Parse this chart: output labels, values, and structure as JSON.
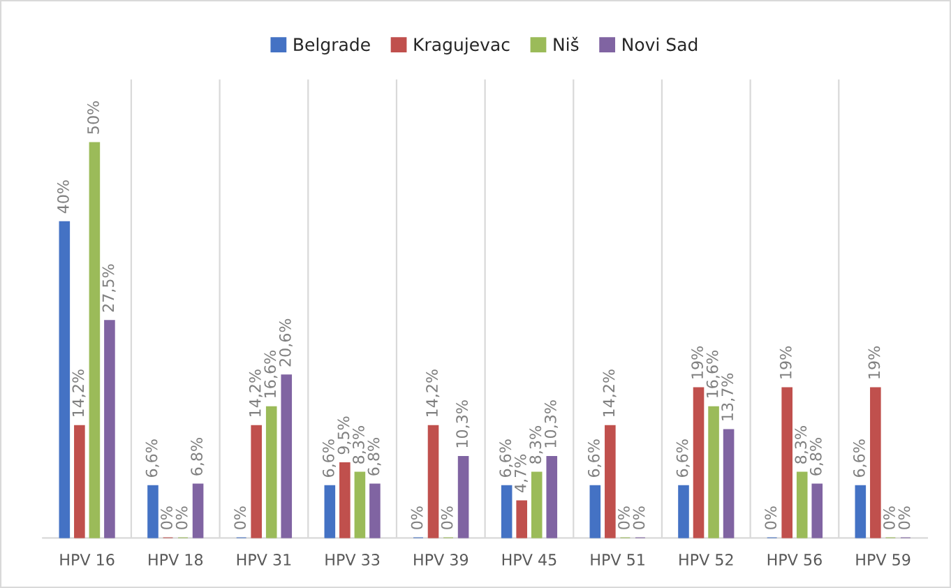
{
  "chart_data": {
    "type": "bar",
    "categories": [
      "HPV 16",
      "HPV 18",
      "HPV 31",
      "HPV 33",
      "HPV 39",
      "HPV 45",
      "HPV 51",
      "HPV 52",
      "HPV 56",
      "HPV 59"
    ],
    "series": [
      {
        "name": "Belgrade",
        "color": "#4472c4",
        "values": [
          40,
          6.6,
          0,
          6.6,
          0,
          6.6,
          6.6,
          6.6,
          0,
          6.6
        ],
        "value_labels": [
          "40%",
          "6,6%",
          "0%",
          "6,6%",
          "0%",
          "6,6%",
          "6,6%",
          "6,6%",
          "0%",
          "6,6%"
        ]
      },
      {
        "name": "Kragujevac",
        "color": "#c0504d",
        "values": [
          14.2,
          0,
          14.2,
          9.5,
          14.2,
          4.7,
          14.2,
          19,
          19,
          19
        ],
        "value_labels": [
          "14,2%",
          "0%",
          "14,2%",
          "9,5%",
          "14,2%",
          "4,7%",
          "14,2%",
          "19%",
          "19%",
          "19%"
        ]
      },
      {
        "name": "Niš",
        "color": "#9bbb59",
        "values": [
          50,
          0,
          16.6,
          8.3,
          0,
          8.3,
          0,
          16.6,
          8.3,
          0
        ],
        "value_labels": [
          "50%",
          "0%",
          "16,6%",
          "8,3%",
          "0%",
          "8,3%",
          "0%",
          "16,6%",
          "8,3%",
          "0%"
        ]
      },
      {
        "name": "Novi Sad",
        "color": "#8064a2",
        "values": [
          27.5,
          6.8,
          20.6,
          6.8,
          10.3,
          10.3,
          0,
          13.7,
          6.8,
          0
        ],
        "value_labels": [
          "27,5%",
          "6,8%",
          "20,6%",
          "6,8%",
          "10,3%",
          "10,3%",
          "0%",
          "13,7%",
          "6,8%",
          "0%"
        ]
      }
    ],
    "grid": "x",
    "legend": "top",
    "tick_labels": "x"
  }
}
